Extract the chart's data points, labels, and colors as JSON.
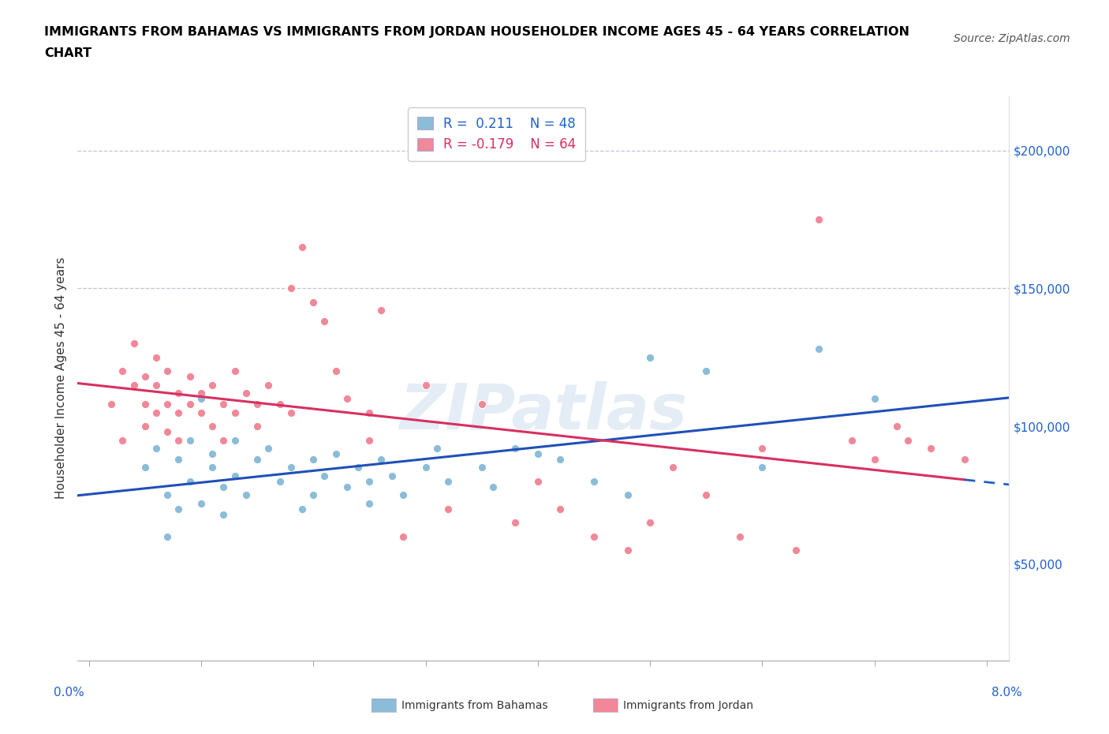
{
  "title_line1": "IMMIGRANTS FROM BAHAMAS VS IMMIGRANTS FROM JORDAN HOUSEHOLDER INCOME AGES 45 - 64 YEARS CORRELATION",
  "title_line2": "CHART",
  "source": "Source: ZipAtlas.com",
  "ylabel": "Householder Income Ages 45 - 64 years",
  "yticks": [
    50000,
    100000,
    150000,
    200000
  ],
  "ytick_labels": [
    "$50,000",
    "$100,000",
    "$150,000",
    "$200,000"
  ],
  "xticks": [
    0.0,
    0.01,
    0.02,
    0.03,
    0.04,
    0.05,
    0.06,
    0.07,
    0.08
  ],
  "xmin": -0.001,
  "xmax": 0.082,
  "ymin": 15000,
  "ymax": 220000,
  "hline_y": [
    150000,
    200000
  ],
  "R_bahamas": 0.211,
  "N_bahamas": 48,
  "R_jordan": -0.179,
  "N_jordan": 64,
  "color_bahamas_dot": "#8bbcd8",
  "color_jordan_dot": "#f08898",
  "color_bahamas_line": "#2050b8",
  "color_jordan_line": "#d83060",
  "color_jordan_dash": "#2060c0",
  "bahamas_x": [
    0.005,
    0.006,
    0.007,
    0.007,
    0.008,
    0.008,
    0.009,
    0.009,
    0.01,
    0.01,
    0.011,
    0.011,
    0.012,
    0.012,
    0.013,
    0.013,
    0.014,
    0.015,
    0.016,
    0.017,
    0.018,
    0.019,
    0.02,
    0.02,
    0.021,
    0.022,
    0.023,
    0.024,
    0.025,
    0.025,
    0.026,
    0.027,
    0.028,
    0.03,
    0.031,
    0.032,
    0.035,
    0.036,
    0.038,
    0.04,
    0.042,
    0.045,
    0.048,
    0.05,
    0.055,
    0.06,
    0.065,
    0.07
  ],
  "bahamas_y": [
    85000,
    92000,
    75000,
    60000,
    88000,
    70000,
    95000,
    80000,
    110000,
    72000,
    90000,
    85000,
    78000,
    68000,
    95000,
    82000,
    75000,
    88000,
    92000,
    80000,
    85000,
    70000,
    88000,
    75000,
    82000,
    90000,
    78000,
    85000,
    72000,
    80000,
    88000,
    82000,
    75000,
    85000,
    92000,
    80000,
    85000,
    78000,
    92000,
    90000,
    88000,
    80000,
    75000,
    125000,
    120000,
    85000,
    128000,
    110000
  ],
  "jordan_x": [
    0.002,
    0.003,
    0.003,
    0.004,
    0.004,
    0.005,
    0.005,
    0.005,
    0.006,
    0.006,
    0.006,
    0.007,
    0.007,
    0.007,
    0.008,
    0.008,
    0.008,
    0.009,
    0.009,
    0.01,
    0.01,
    0.011,
    0.011,
    0.012,
    0.012,
    0.013,
    0.013,
    0.014,
    0.015,
    0.015,
    0.016,
    0.017,
    0.018,
    0.018,
    0.019,
    0.02,
    0.021,
    0.022,
    0.023,
    0.025,
    0.025,
    0.026,
    0.028,
    0.03,
    0.032,
    0.035,
    0.038,
    0.04,
    0.042,
    0.045,
    0.048,
    0.05,
    0.052,
    0.055,
    0.058,
    0.06,
    0.063,
    0.065,
    0.068,
    0.07,
    0.072,
    0.073,
    0.075,
    0.078
  ],
  "jordan_y": [
    108000,
    95000,
    120000,
    115000,
    130000,
    100000,
    118000,
    108000,
    125000,
    115000,
    105000,
    120000,
    108000,
    98000,
    112000,
    105000,
    95000,
    108000,
    118000,
    112000,
    105000,
    115000,
    100000,
    108000,
    95000,
    105000,
    120000,
    112000,
    100000,
    108000,
    115000,
    108000,
    150000,
    105000,
    165000,
    145000,
    138000,
    120000,
    110000,
    105000,
    95000,
    142000,
    60000,
    115000,
    70000,
    108000,
    65000,
    80000,
    70000,
    60000,
    55000,
    65000,
    85000,
    75000,
    60000,
    92000,
    55000,
    175000,
    95000,
    88000,
    100000,
    95000,
    92000,
    88000
  ]
}
